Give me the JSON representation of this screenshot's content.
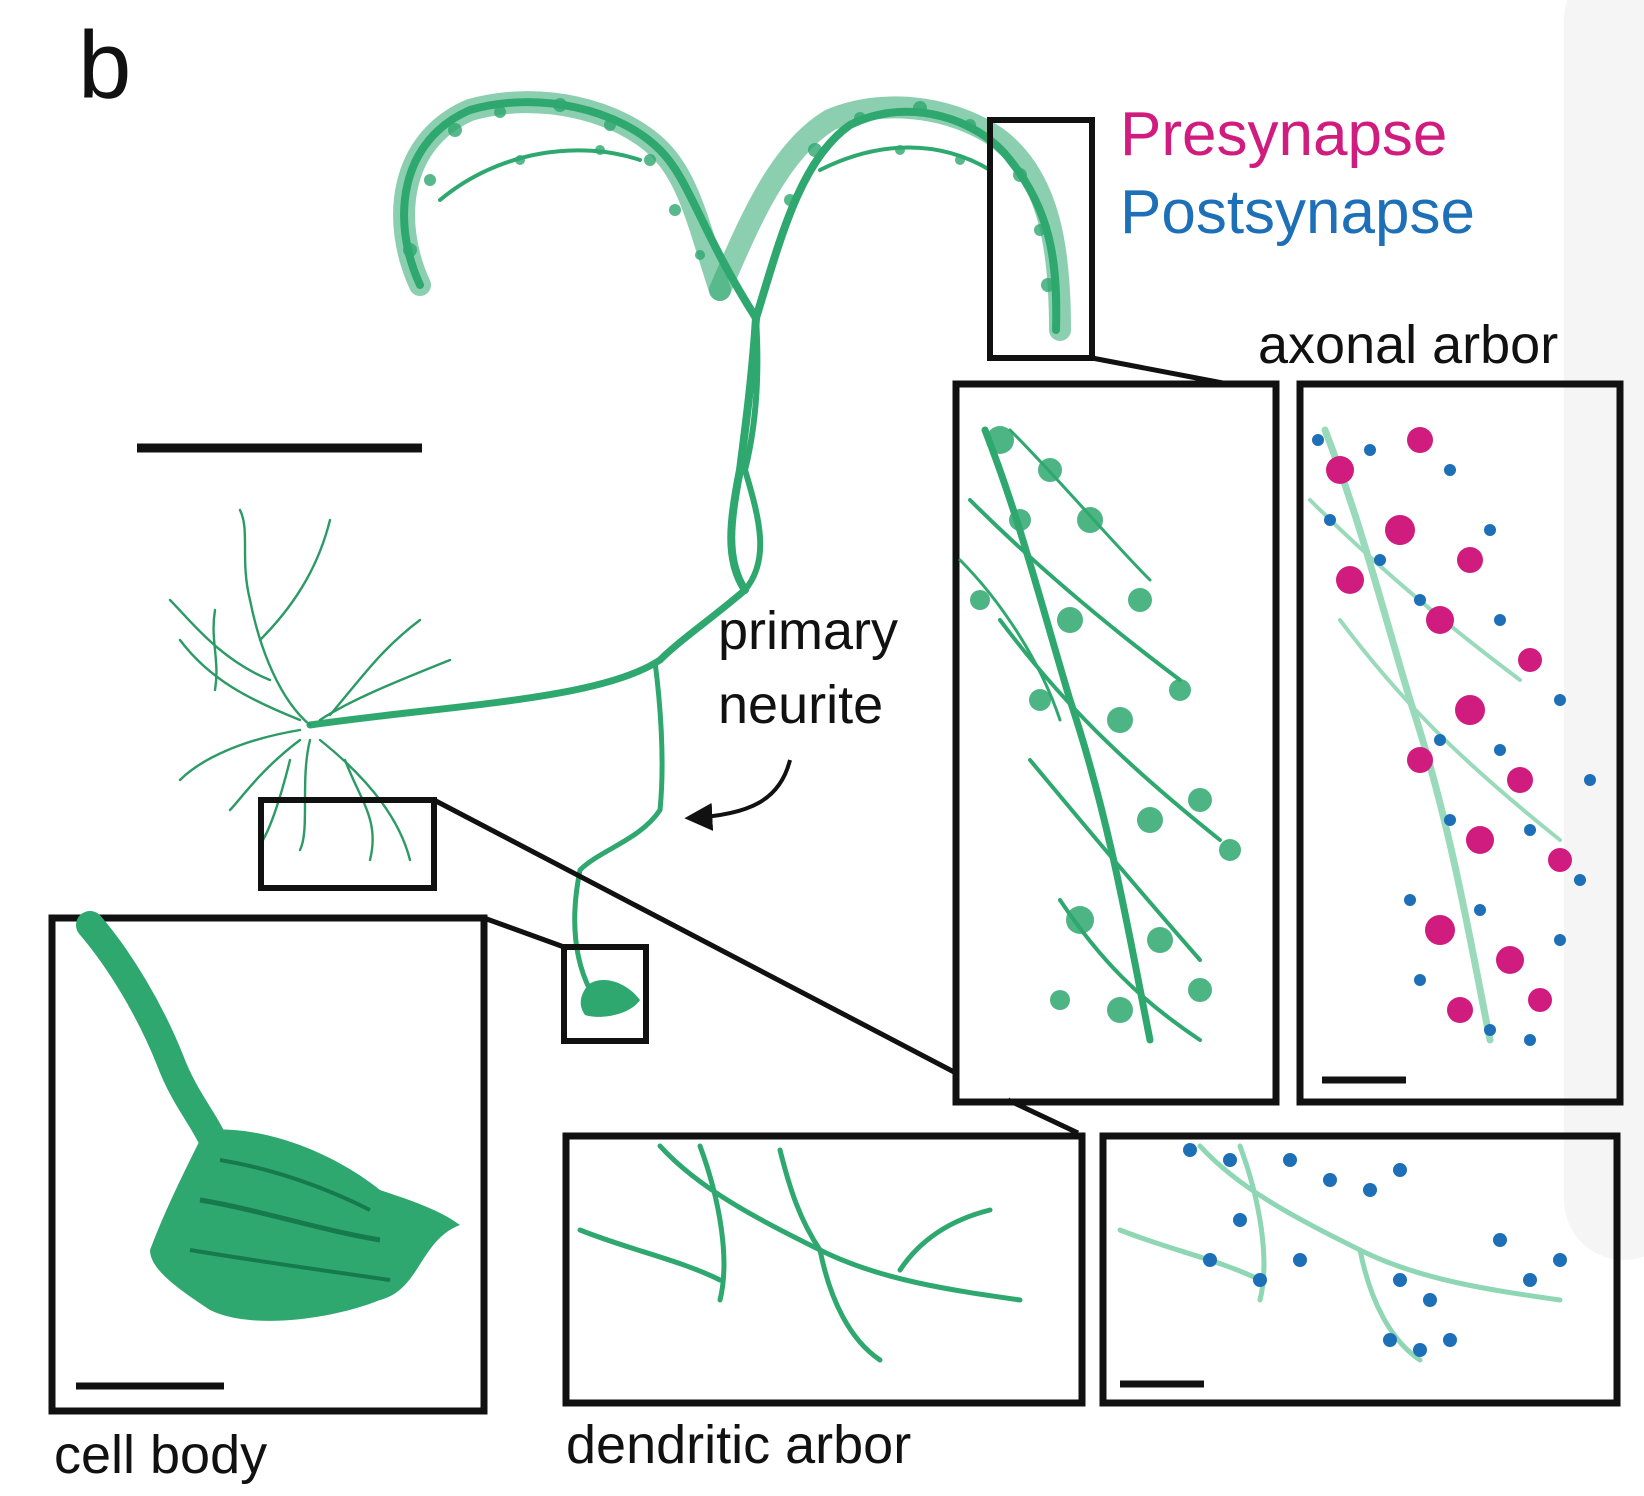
{
  "figure": {
    "panel_letter": "b",
    "legend": {
      "presynapse": "Presynapse",
      "postsynapse": "Postsynapse",
      "presynapse_color": "#d11c7f",
      "postsynapse_color": "#1d6fb8"
    },
    "annotations": {
      "axonal_arbor": "axonal arbor",
      "primary_line1": "primary",
      "primary_line2": "neurite",
      "cell_body": "cell body",
      "dendritic_arbor": "dendritic arbor"
    },
    "colors": {
      "neuron": "#2ea86f",
      "neuron_dark": "#177a4c",
      "neuron_faint": "#8fd6b4",
      "frame": "#111111"
    }
  }
}
